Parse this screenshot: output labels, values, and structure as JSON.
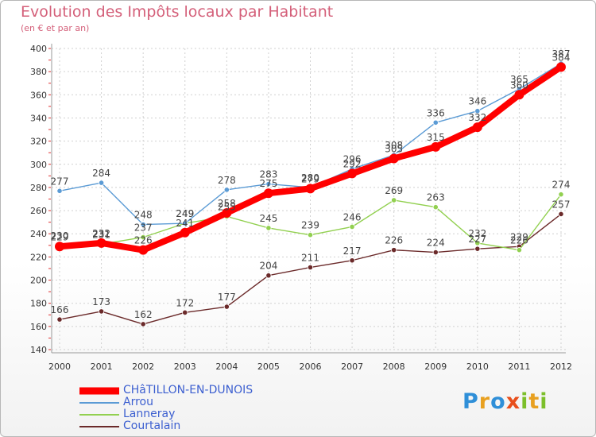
{
  "title": "Evolution des Impôts locaux par Habitant",
  "subtitle": "(en € et par an)",
  "logo": {
    "text": "Proxiti"
  },
  "colors": {
    "title": "#d4607a",
    "legend_text": "#3c5fd0",
    "grid": "#cccccc"
  },
  "chart_data": {
    "type": "line",
    "title": "Evolution des Impôts locaux par Habitant",
    "subtitle": "(en € et par an)",
    "xlabel": "",
    "ylabel": "",
    "categories": [
      "2000",
      "2001",
      "2002",
      "2003",
      "2004",
      "2005",
      "2006",
      "2007",
      "2008",
      "2009",
      "2010",
      "2011",
      "2012"
    ],
    "ylim": [
      140,
      400
    ],
    "yticks": [
      140,
      160,
      180,
      200,
      220,
      240,
      260,
      280,
      300,
      320,
      340,
      360,
      380,
      400
    ],
    "grid": true,
    "legend_position": "bottom-left",
    "series": [
      {
        "name": "CHâTILLON-EN-DUNOIS",
        "color": "#ff0000",
        "values": [
          229,
          232,
          226,
          241,
          258,
          275,
          279,
          292,
          305,
          315,
          332,
          360,
          384
        ]
      },
      {
        "name": "Arrou",
        "color": "#5b9bd5",
        "values": [
          277,
          284,
          248,
          249,
          278,
          283,
          280,
          296,
          308,
          336,
          346,
          365,
          387
        ]
      },
      {
        "name": "Lanneray",
        "color": "#92d050",
        "values": [
          230,
          231,
          237,
          249,
          255,
          245,
          239,
          246,
          269,
          263,
          232,
          226,
          274
        ]
      },
      {
        "name": "Courtalain",
        "color": "#6b2a2a",
        "values": [
          166,
          173,
          162,
          172,
          177,
          204,
          211,
          217,
          226,
          224,
          227,
          229,
          257
        ]
      }
    ]
  }
}
